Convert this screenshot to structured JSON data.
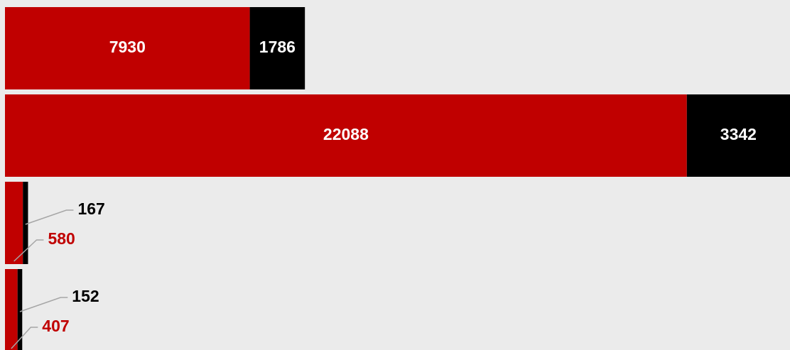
{
  "chart_data": {
    "type": "bar",
    "orientation": "horizontal",
    "stacked": true,
    "categories": [
      null,
      null,
      null,
      null
    ],
    "series": [
      {
        "color": "#c00000",
        "values": [
          7930,
          22088,
          580,
          407
        ]
      },
      {
        "color": "#000000",
        "values": [
          1786,
          3342,
          167,
          152
        ]
      }
    ]
  }
}
